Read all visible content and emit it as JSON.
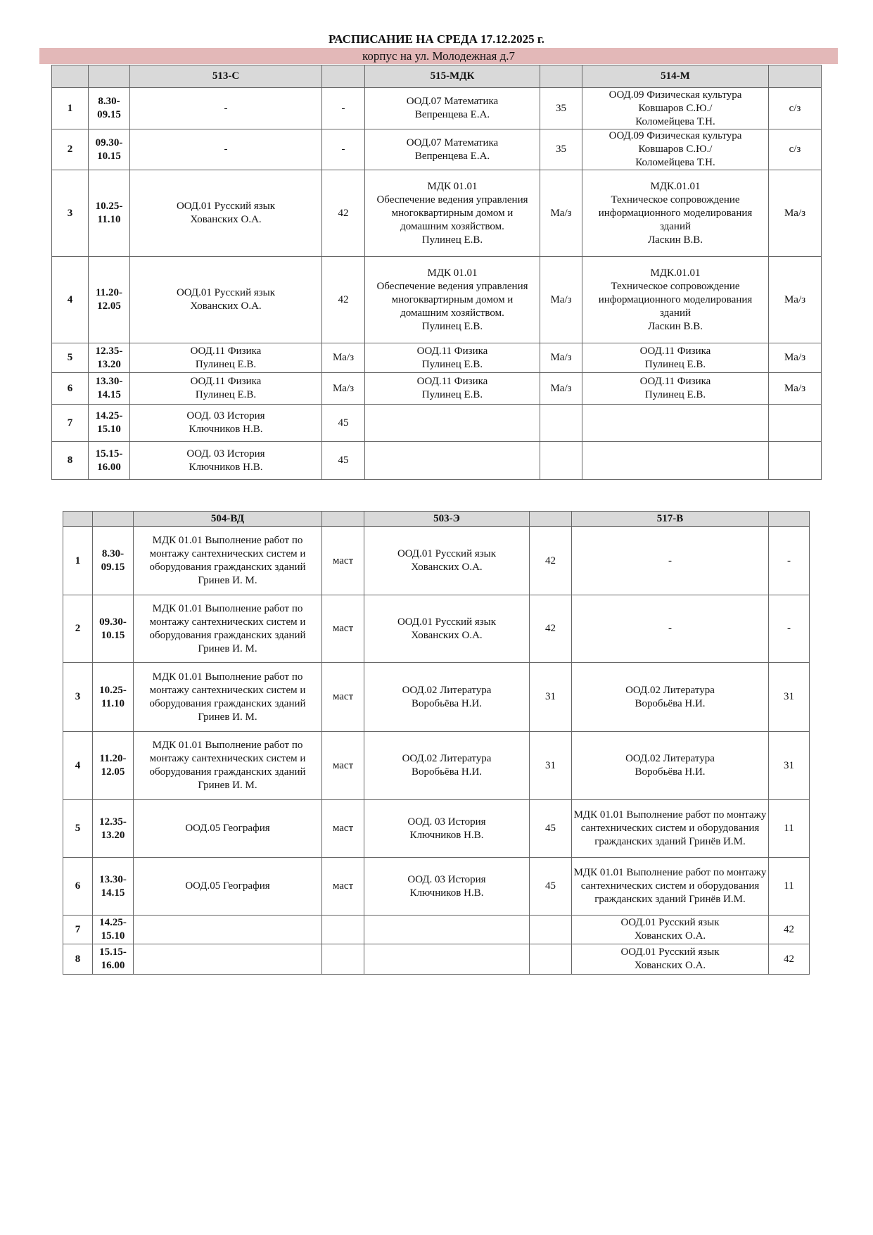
{
  "title": "РАСПИСАНИЕ НА СРЕДА 17.12.2025 г.",
  "building": "корпус на ул. Молодежная д.7",
  "tables": [
    {
      "groups": [
        "513-С",
        "515-МДК",
        "514-М"
      ],
      "rows": [
        [
          "1",
          "8.30-\n09.15",
          "-",
          "-",
          "ООД.07 Математика\nВепренцева Е.А.",
          "35",
          "ООД.09 Физическая культура\nКовшаров С.Ю./\nКоломейцева Т.Н.",
          "с/з"
        ],
        [
          "2",
          "09.30-\n10.15",
          "-",
          "-",
          "ООД.07 Математика\nВепренцева Е.А.",
          "35",
          "ООД.09 Физическая культура\nКовшаров С.Ю./\nКоломейцева Т.Н.",
          "с/з"
        ],
        [
          "3",
          "10.25-\n11.10",
          "ООД.01 Русский язык\nХованских О.А.",
          "42",
          "МДК 01.01\nОбеспечение ведения управления многоквартирным домом и домашним хозяйством.\nПулинец Е.В.",
          "Ма/з",
          "МДК.01.01\nТехническое сопровождение информационного моделирования зданий\nЛаскин В.В.",
          "Ма/з"
        ],
        [
          "4",
          "11.20-\n12.05",
          "ООД.01 Русский язык\nХованских О.А.",
          "42",
          "МДК 01.01\nОбеспечение ведения управления многоквартирным домом и домашним хозяйством.\nПулинец Е.В.",
          "Ма/з",
          "МДК.01.01\nТехническое сопровождение информационного моделирования зданий\nЛаскин В.В.",
          "Ма/з"
        ],
        [
          "5",
          "12.35-\n13.20",
          "ООД.11 Физика\nПулинец Е.В.",
          "Ма/з",
          "ООД.11 Физика\nПулинец Е.В.",
          "Ма/з",
          "ООД.11 Физика\nПулинец Е.В.",
          "Ма/з"
        ],
        [
          "6",
          "13.30-\n14.15",
          "ООД.11 Физика\nПулинец Е.В.",
          "Ма/з",
          "ООД.11 Физика\nПулинец Е.В.",
          "Ма/з",
          "ООД.11 Физика\nПулинец Е.В.",
          "Ма/з"
        ],
        [
          "7",
          "14.25-\n15.10",
          "ООД. 03  История\nКлючников Н.В.",
          "45",
          "",
          "",
          "",
          ""
        ],
        [
          "8",
          "15.15-\n16.00",
          "ООД. 03  История\nКлючников Н.В.",
          "45",
          "",
          "",
          "",
          ""
        ]
      ]
    },
    {
      "groups": [
        "504-ВД",
        "503-Э",
        "517-В"
      ],
      "rows": [
        [
          "1",
          "8.30-\n09.15",
          "МДК 01.01 Выполнение работ по монтажу сантехнических систем и оборудования гражданских зданий\nГринев И. М.",
          "маст",
          "ООД.01 Русский язык\nХованских О.А.",
          "42",
          "-",
          "-"
        ],
        [
          "2",
          "09.30-\n10.15",
          "МДК 01.01 Выполнение работ по монтажу сантехнических систем и оборудования гражданских зданий\nГринев И. М.",
          "маст",
          "ООД.01 Русский язык\nХованских О.А.",
          "42",
          "-",
          "-"
        ],
        [
          "3",
          "10.25-\n11.10",
          "МДК 01.01 Выполнение работ по монтажу сантехнических систем и оборудования гражданских зданий\nГринев И. М.",
          "маст",
          "ООД.02 Литература\nВоробьёва Н.И.",
          "31",
          "ООД.02 Литература\nВоробьёва Н.И.",
          "31"
        ],
        [
          "4",
          "11.20-\n12.05",
          "МДК 01.01 Выполнение работ по монтажу сантехнических систем и оборудования гражданских зданий\nГринев И. М.",
          "маст",
          "ООД.02 Литература\nВоробьёва Н.И.",
          "31",
          "ООД.02 Литература\nВоробьёва Н.И.",
          "31"
        ],
        [
          "5",
          "12.35-\n13.20",
          "ООД.05 География",
          "маст",
          "ООД. 03 История\nКлючников Н.В.",
          "45",
          "МДК 01.01 Выполнение работ по монтажу сантехнических систем и оборудования гражданских зданий     Гринёв И.М.",
          "11"
        ],
        [
          "6",
          "13.30-\n14.15",
          "ООД.05 География",
          "маст",
          "ООД. 03 История\nКлючников Н.В.",
          "45",
          "МДК 01.01 Выполнение работ по монтажу сантехнических систем и оборудования гражданских зданий     Гринёв И.М.",
          "11"
        ],
        [
          "7",
          "14.25-\n15.10",
          "",
          "",
          "",
          "",
          "ООД.01 Русский язык\nХованских О.А.",
          "42"
        ],
        [
          "8",
          "15.15-\n16.00",
          "",
          "",
          "",
          "",
          "ООД.01 Русский язык\nХованских О.А.",
          "42"
        ]
      ]
    }
  ]
}
